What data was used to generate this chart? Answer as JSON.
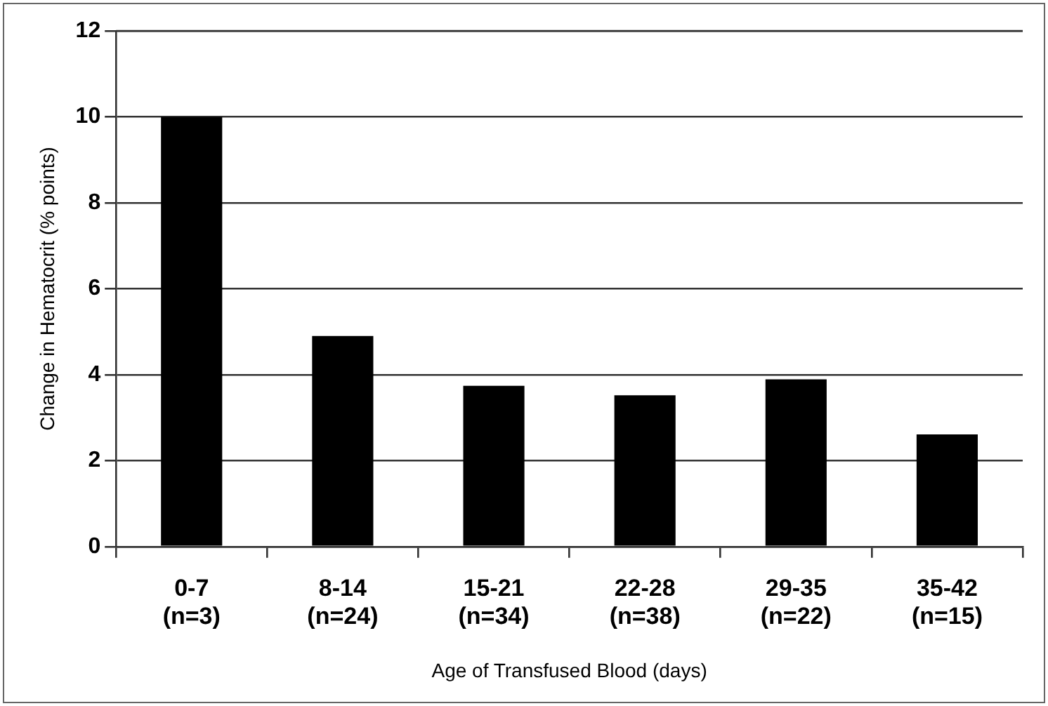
{
  "chart_data": {
    "type": "bar",
    "categories": [
      "0-7\n(n=3)",
      "8-14\n(n=24)",
      "15-21\n(n=34)",
      "22-28\n(n=38)",
      "29-35\n(n=22)",
      "35-42\n(n=15)"
    ],
    "values": [
      10,
      4.9,
      3.74,
      3.52,
      3.89,
      2.61
    ],
    "color": "#000000",
    "xlabel": "Age of Transfused Blood (days)",
    "ylabel": "Change in Hematocrit (% points)",
    "ylim": [
      0,
      12
    ],
    "yticks": [
      0,
      2,
      4,
      6,
      8,
      10,
      12
    ],
    "grid": "y",
    "legend": false
  }
}
